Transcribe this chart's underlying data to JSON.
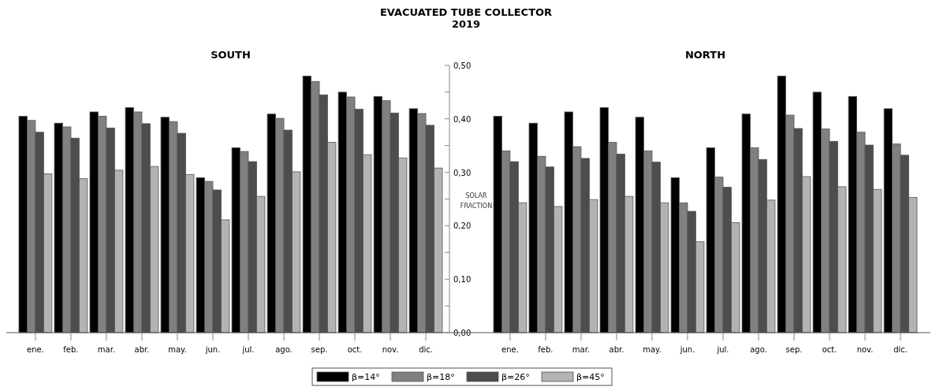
{
  "chart_data": [
    {
      "type": "bar",
      "title": "SOUTH",
      "annotations": [
        "EVACUATED TUBE COLLECTOR",
        "2019"
      ],
      "legend": "bottom",
      "ylabel": "SOLAR FRACTION",
      "grid": false,
      "categories": [
        "ene.",
        "feb.",
        "mar.",
        "abr.",
        "may.",
        "jun.",
        "jul.",
        "ago.",
        "sep.",
        "oct.",
        "nov.",
        "dic."
      ],
      "ylim": [
        0,
        0.5
      ],
      "yticks": [
        {
          "value": 0,
          "label": "0,00"
        },
        {
          "value": 0.05,
          "label": null
        },
        {
          "value": 0.1,
          "label": "0,10"
        },
        {
          "value": 0.15,
          "label": null
        },
        {
          "value": 0.2,
          "label": "0,20"
        },
        {
          "value": 0.25,
          "label": null
        },
        {
          "value": 0.3,
          "label": "0,30"
        },
        {
          "value": 0.35,
          "label": null
        },
        {
          "value": 0.4,
          "label": "0,40"
        },
        {
          "value": 0.45,
          "label": null
        },
        {
          "value": 0.5,
          "label": "0,50"
        }
      ],
      "series": [
        {
          "name": "β=14°",
          "color": "#000000",
          "values": [
            0.405,
            0.392,
            0.413,
            0.421,
            0.403,
            0.29,
            0.346,
            0.409,
            0.48,
            0.45,
            0.442,
            0.419
          ]
        },
        {
          "name": "β=18°",
          "color": "#808080",
          "values": [
            0.397,
            0.385,
            0.405,
            0.413,
            0.395,
            0.283,
            0.339,
            0.401,
            0.47,
            0.441,
            0.434,
            0.41
          ]
        },
        {
          "name": "β=26°",
          "color": "#4d4d4d",
          "values": [
            0.375,
            0.364,
            0.383,
            0.391,
            0.373,
            0.267,
            0.32,
            0.379,
            0.445,
            0.418,
            0.411,
            0.388
          ]
        },
        {
          "name": "β=45°",
          "color": "#b3b3b3",
          "values": [
            0.297,
            0.288,
            0.304,
            0.311,
            0.296,
            0.211,
            0.255,
            0.301,
            0.356,
            0.333,
            0.327,
            0.308
          ]
        }
      ]
    },
    {
      "type": "bar",
      "title": "NORTH",
      "tick_labels": "x",
      "grid": false,
      "categories": [
        "ene.",
        "feb.",
        "mar.",
        "abr.",
        "may.",
        "jun.",
        "jul.",
        "ago.",
        "sep.",
        "oct.",
        "nov.",
        "dic."
      ],
      "ylim": [
        0,
        0.5
      ],
      "series": [
        {
          "color": "#000000",
          "values": [
            0.405,
            0.392,
            0.413,
            0.421,
            0.403,
            0.29,
            0.346,
            0.409,
            0.48,
            0.45,
            0.442,
            0.419
          ]
        },
        {
          "color": "#808080",
          "values": [
            0.34,
            0.33,
            0.348,
            0.356,
            0.34,
            0.243,
            0.291,
            0.346,
            0.407,
            0.381,
            0.375,
            0.353
          ]
        },
        {
          "color": "#4d4d4d",
          "values": [
            0.32,
            0.31,
            0.326,
            0.334,
            0.319,
            0.227,
            0.272,
            0.324,
            0.382,
            0.358,
            0.351,
            0.332
          ]
        },
        {
          "color": "#b3b3b3",
          "values": [
            0.243,
            0.236,
            0.249,
            0.255,
            0.243,
            0.17,
            0.206,
            0.248,
            0.292,
            0.273,
            0.268,
            0.253
          ]
        }
      ]
    }
  ]
}
